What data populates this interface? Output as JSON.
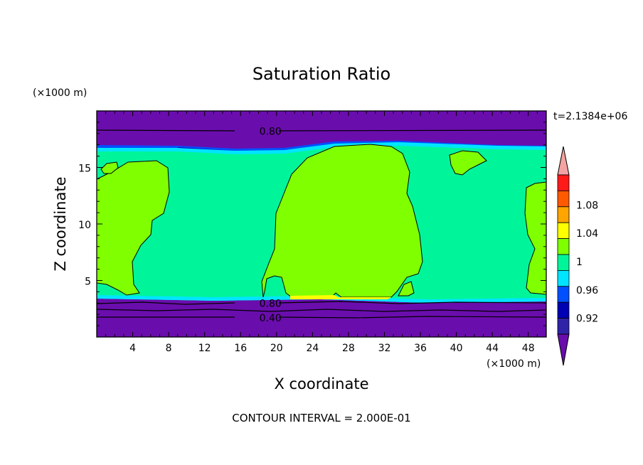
{
  "chart_data": {
    "type": "heatmap",
    "title": "Saturation Ratio",
    "xlabel": "X coordinate",
    "ylabel": "Z coordinate",
    "x_unit": "(×1000 m)",
    "y_unit": "(×1000 m)",
    "xlim": [
      0,
      50
    ],
    "ylim": [
      0,
      20
    ],
    "x_ticks": [
      4,
      8,
      12,
      16,
      20,
      24,
      28,
      32,
      36,
      40,
      44,
      48
    ],
    "y_ticks": [
      5,
      10,
      15
    ],
    "time_label": "t=2.1384e+06",
    "footer": "CONTOUR INTERVAL = 2.000E-01",
    "contour_labels": [
      {
        "text": "0.80",
        "x": 17.5,
        "z": 18.2
      },
      {
        "text": "0.80",
        "x": 17.5,
        "z": 3.0
      },
      {
        "text": "0.40",
        "x": 17.5,
        "z": 1.7
      }
    ],
    "colorbar": {
      "levels": [
        0.92,
        0.94,
        0.96,
        0.98,
        1.0,
        1.02,
        1.04,
        1.06,
        1.08,
        1.1
      ],
      "tick_labels": [
        {
          "value": 0.92,
          "text": "0.92"
        },
        {
          "value": 0.96,
          "text": "0.96"
        },
        {
          "value": 1.0,
          "text": "1"
        },
        {
          "value": 1.04,
          "text": "1.04"
        },
        {
          "value": 1.08,
          "text": "1.08"
        }
      ],
      "colors": [
        "#6a0dad",
        "#3023a8",
        "#0000b4",
        "#0050ff",
        "#00e5ff",
        "#00f59a",
        "#80ff00",
        "#ffff00",
        "#ffa500",
        "#ff5a00",
        "#ff1a1a",
        "#f4a3a3"
      ]
    },
    "regions": {
      "background_band_color": "#00f59a",
      "cloud_color": "#80ff00",
      "dry_color": "#6a0dad",
      "moist_edge_color": "#00e5ff",
      "transition_color": "#0050ff",
      "deep_blue_color": "#0000b4",
      "highlight_color": "#ffff00",
      "saturated_top_z": 16.9,
      "saturated_bottom_z": 3.2,
      "contour_levels_z": [
        18.2,
        3.0,
        2.4,
        1.7
      ]
    }
  }
}
